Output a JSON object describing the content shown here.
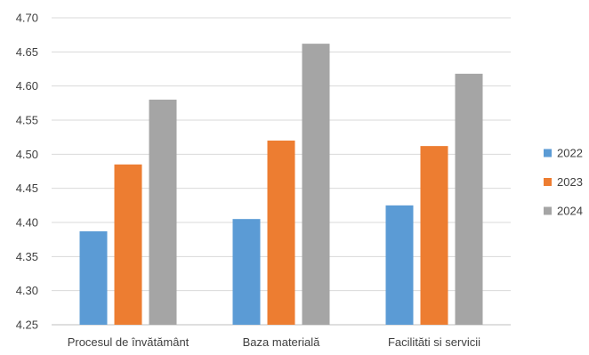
{
  "chart_data": {
    "type": "bar",
    "title": "",
    "xlabel": "",
    "ylabel": "",
    "categories": [
      "Procesul de învătământ",
      "Baza materială",
      "Facilităti si servicii"
    ],
    "series": [
      {
        "name": "2022",
        "color": "#5B9BD5",
        "values": [
          4.387,
          4.405,
          4.425
        ]
      },
      {
        "name": "2023",
        "color": "#ED7D31",
        "values": [
          4.485,
          4.52,
          4.512
        ]
      },
      {
        "name": "2024",
        "color": "#A5A5A5",
        "values": [
          4.58,
          4.662,
          4.618
        ]
      }
    ],
    "ylim": [
      4.25,
      4.7
    ],
    "yticks": [
      "4.25",
      "4.30",
      "4.35",
      "4.40",
      "4.45",
      "4.50",
      "4.55",
      "4.60",
      "4.65",
      "4.70"
    ],
    "grid": true,
    "legend_position": "right"
  }
}
